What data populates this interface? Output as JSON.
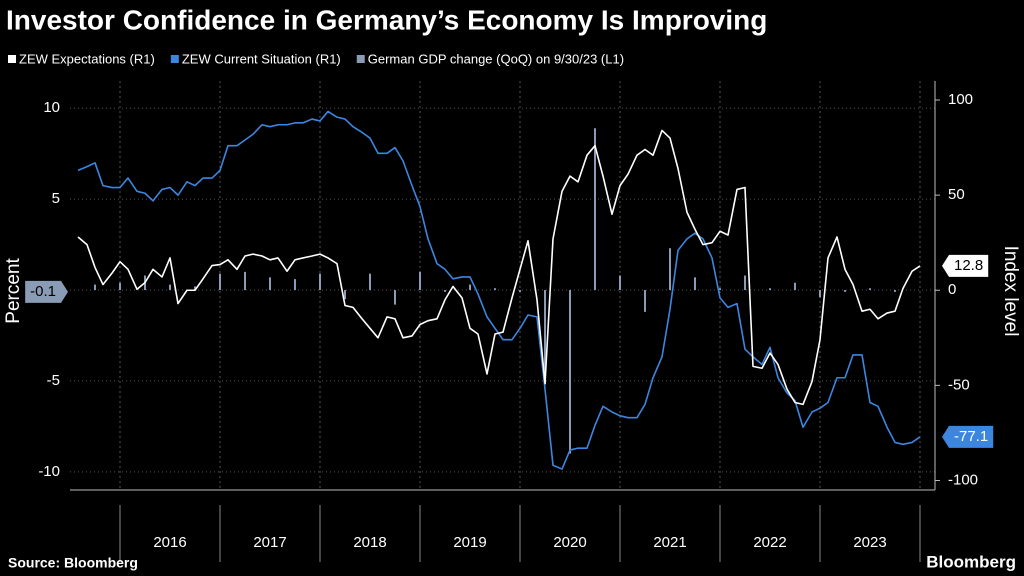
{
  "chart_data": {
    "type": "line",
    "title": "Investor Confidence in Germany’s Economy Is Improving",
    "source": "Source: Bloomberg",
    "brand": "Bloomberg",
    "ylabel": "Percent",
    "y2label": "Index level",
    "ylim": [
      -11,
      11.5
    ],
    "yticks": [
      -10,
      -5,
      0,
      5,
      10
    ],
    "y2lim": [
      -105,
      110
    ],
    "y2ticks": [
      -100,
      -50,
      0,
      50,
      100
    ],
    "xlim": [
      2015.5,
      2024.15
    ],
    "xticks": [
      2016,
      2017,
      2018,
      2019,
      2020,
      2021,
      2022,
      2023,
      2024
    ],
    "x_labels": [
      "2016",
      "2017",
      "2018",
      "2019",
      "2020",
      "2021",
      "2022",
      "2023"
    ],
    "grid": true,
    "x": [
      2015.58,
      2015.67,
      2015.75,
      2015.83,
      2015.92,
      2016.0,
      2016.08,
      2016.17,
      2016.25,
      2016.33,
      2016.42,
      2016.5,
      2016.58,
      2016.67,
      2016.75,
      2016.83,
      2016.92,
      2017.0,
      2017.08,
      2017.17,
      2017.25,
      2017.33,
      2017.42,
      2017.5,
      2017.58,
      2017.67,
      2017.75,
      2017.83,
      2017.92,
      2018.0,
      2018.08,
      2018.17,
      2018.25,
      2018.33,
      2018.42,
      2018.5,
      2018.58,
      2018.67,
      2018.75,
      2018.83,
      2018.92,
      2019.0,
      2019.08,
      2019.17,
      2019.25,
      2019.33,
      2019.42,
      2019.5,
      2019.58,
      2019.67,
      2019.75,
      2019.83,
      2019.92,
      2020.0,
      2020.08,
      2020.17,
      2020.25,
      2020.33,
      2020.42,
      2020.5,
      2020.58,
      2020.67,
      2020.75,
      2020.83,
      2020.92,
      2021.0,
      2021.08,
      2021.17,
      2021.25,
      2021.33,
      2021.42,
      2021.5,
      2021.58,
      2021.67,
      2021.75,
      2021.83,
      2021.92,
      2022.0,
      2022.08,
      2022.17,
      2022.25,
      2022.33,
      2022.42,
      2022.5,
      2022.58,
      2022.67,
      2022.75,
      2022.83,
      2022.92,
      2023.0,
      2023.08,
      2023.17,
      2023.25,
      2023.33,
      2023.42,
      2023.5,
      2023.58,
      2023.67,
      2023.75,
      2023.83,
      2023.92,
      2024.0
    ],
    "series": [
      {
        "name": "ZEW Expectations (R1)",
        "color": "#ffffff",
        "axis": "y2",
        "kind": "line",
        "values": [
          28,
          24,
          12,
          3,
          9,
          15,
          11,
          0.5,
          4,
          11,
          7,
          17,
          -7,
          0,
          0,
          6,
          13,
          13.5,
          16,
          11,
          18,
          19,
          18,
          16,
          17,
          10,
          16,
          17,
          18,
          19,
          17,
          14,
          -8,
          -9,
          -15,
          -20,
          -25,
          -14,
          -15,
          -25,
          -24,
          -18,
          -16,
          -15,
          -5,
          2,
          -4,
          -20,
          -23,
          -44,
          -23,
          -22,
          -4,
          11,
          26,
          -5,
          -49,
          27,
          52,
          60,
          57,
          71,
          76,
          60,
          40,
          55,
          61,
          71,
          74,
          71,
          84,
          80,
          64,
          41,
          32,
          24,
          25,
          31,
          29,
          53,
          54,
          -40,
          -41,
          -33,
          -39,
          -52,
          -59,
          -60,
          -48,
          -26,
          17,
          28,
          11,
          3,
          -11,
          -10,
          -15,
          -12,
          -11,
          1,
          10,
          12.8
        ]
      },
      {
        "name": "ZEW Current Situation (R1)",
        "color": "#3d86e0",
        "axis": "y2",
        "kind": "line",
        "values": [
          63,
          65,
          67,
          55,
          54,
          54,
          59,
          52,
          51,
          47,
          53,
          54,
          50,
          57,
          55,
          59,
          59,
          63,
          76,
          76,
          79,
          82,
          87,
          86,
          87,
          87,
          88,
          88,
          90,
          89,
          94,
          91,
          90,
          86,
          83,
          80,
          72,
          72,
          75,
          68,
          55,
          44,
          27,
          14,
          11,
          6,
          7,
          7,
          -2,
          -14,
          -20,
          -26,
          -26,
          -20,
          -13,
          -14,
          -52,
          -92,
          -94,
          -84,
          -83,
          -83,
          -71,
          -61,
          -64,
          -66,
          -67,
          -67,
          -60,
          -46,
          -35,
          -10,
          21,
          27,
          30,
          27,
          17,
          -4,
          -9,
          -7,
          -31,
          -35,
          -39,
          -30,
          -46,
          -54,
          -58,
          -72,
          -64,
          -62,
          -59,
          -46,
          -46,
          -34,
          -34,
          -59,
          -61,
          -72,
          -80,
          -81,
          -80,
          -77.1
        ]
      },
      {
        "name": "German GDP change (QoQ) on 9/30/23 (L1)",
        "color": "#8a9bb5",
        "kind": "bar",
        "x": [
          2015.75,
          2016.0,
          2016.25,
          2016.5,
          2016.75,
          2017.0,
          2017.25,
          2017.5,
          2017.75,
          2018.0,
          2018.25,
          2018.5,
          2018.75,
          2019.0,
          2019.25,
          2019.5,
          2019.75,
          2020.0,
          2020.25,
          2020.5,
          2020.75,
          2021.0,
          2021.25,
          2021.5,
          2021.75,
          2022.0,
          2022.25,
          2022.5,
          2022.75,
          2023.0,
          2023.25,
          2023.5,
          2023.75
        ],
        "values": [
          0.3,
          0.4,
          0.8,
          0.3,
          0.2,
          0.9,
          1.0,
          0.7,
          0.6,
          0.9,
          -0.5,
          0.9,
          -0.8,
          1.0,
          -0.1,
          0.3,
          0.1,
          -0.1,
          -5.2,
          -9.0,
          8.9,
          0.8,
          -1.2,
          2.3,
          0.7,
          0.1,
          0.8,
          0.1,
          0.4,
          -0.4,
          -0.1,
          0.1,
          -0.1
        ]
      }
    ]
  }
}
